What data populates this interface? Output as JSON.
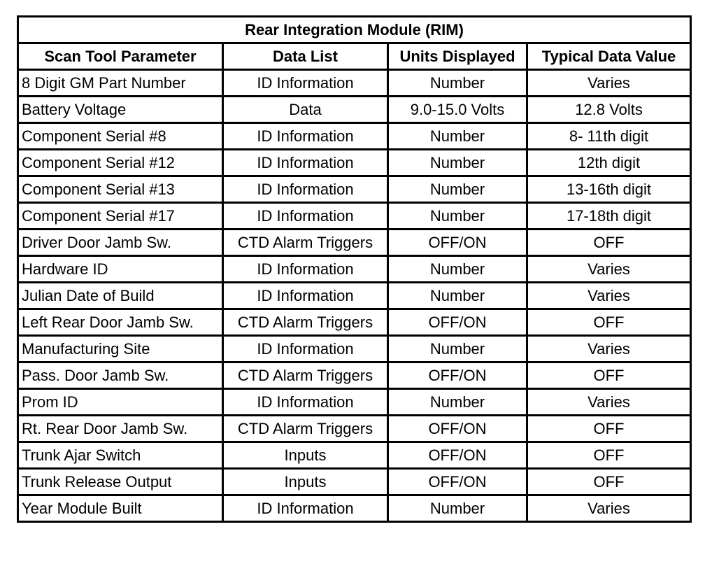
{
  "table": {
    "title": "Rear Integration Module (RIM)",
    "columns": [
      "Scan Tool Parameter",
      "Data List",
      "Units Displayed",
      "Typical Data Value"
    ],
    "rows": [
      [
        "8 Digit GM Part Number",
        "ID Information",
        "Number",
        "Varies"
      ],
      [
        "Battery Voltage",
        "Data",
        "9.0-15.0 Volts",
        "12.8 Volts"
      ],
      [
        "Component Serial #8",
        "ID Information",
        "Number",
        "8- 11th digit"
      ],
      [
        "Component Serial #12",
        "ID Information",
        "Number",
        "12th digit"
      ],
      [
        "Component Serial #13",
        "ID Information",
        "Number",
        "13-16th digit"
      ],
      [
        "Component Serial #17",
        "ID Information",
        "Number",
        "17-18th digit"
      ],
      [
        "Driver Door Jamb Sw.",
        "CTD Alarm Triggers",
        "OFF/ON",
        "OFF"
      ],
      [
        "Hardware ID",
        "ID Information",
        "Number",
        "Varies"
      ],
      [
        "Julian Date of Build",
        "ID Information",
        "Number",
        "Varies"
      ],
      [
        "Left Rear Door Jamb Sw.",
        "CTD Alarm Triggers",
        "OFF/ON",
        "OFF"
      ],
      [
        "Manufacturing Site",
        "ID Information",
        "Number",
        "Varies"
      ],
      [
        "Pass. Door Jamb Sw.",
        "CTD Alarm Triggers",
        "OFF/ON",
        "OFF"
      ],
      [
        "Prom ID",
        "ID Information",
        "Number",
        "Varies"
      ],
      [
        "Rt. Rear Door Jamb Sw.",
        "CTD Alarm Triggers",
        "OFF/ON",
        "OFF"
      ],
      [
        "Trunk Ajar Switch",
        "Inputs",
        "OFF/ON",
        "OFF"
      ],
      [
        "Trunk Release Output",
        "Inputs",
        "OFF/ON",
        "OFF"
      ],
      [
        "Year Module Built",
        "ID Information",
        "Number",
        "Varies"
      ]
    ]
  }
}
